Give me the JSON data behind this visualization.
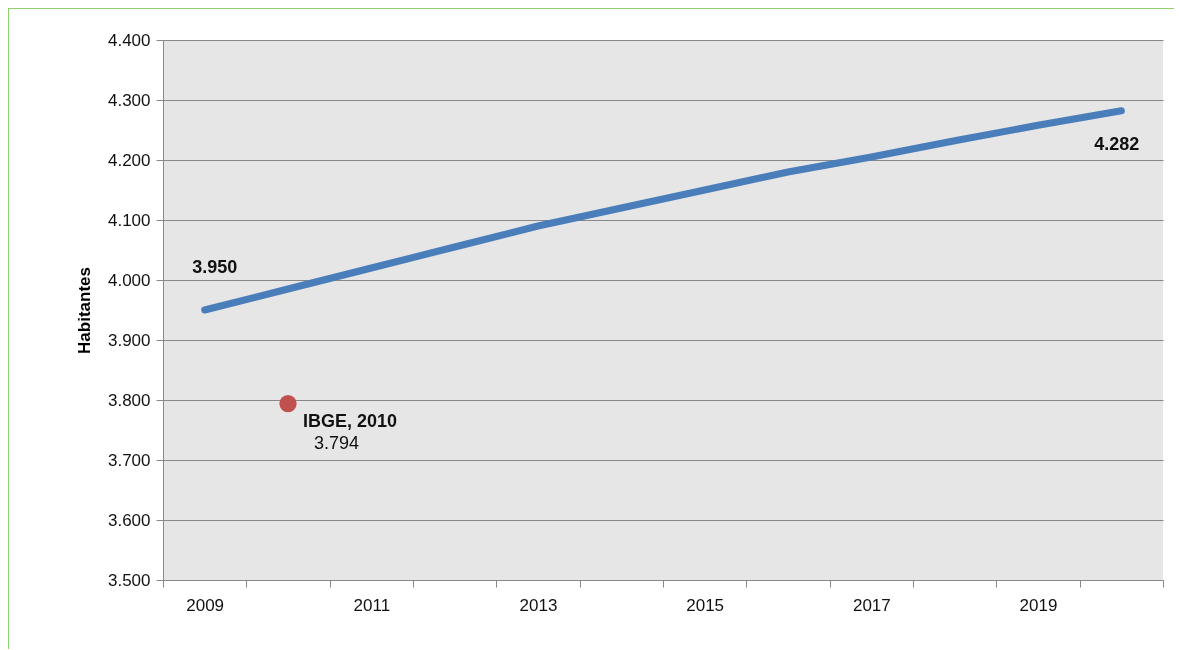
{
  "chart_data": {
    "type": "line",
    "ylabel": "Habitantes",
    "x": [
      2009,
      2010,
      2011,
      2012,
      2013,
      2014,
      2015,
      2016,
      2017,
      2018,
      2019,
      2020
    ],
    "series": [
      {
        "color": "#4a7ebb",
        "values": [
          3950,
          3985,
          4020,
          4055,
          4090,
          4120,
          4150,
          4180,
          4205,
          4232,
          4258,
          4282
        ],
        "value_labels": [
          "3.950",
          null,
          null,
          null,
          null,
          null,
          null,
          null,
          null,
          null,
          null,
          "4.282"
        ]
      },
      {
        "name": "IBGE, 2010",
        "type": "scatter",
        "marker": "circle",
        "color": "#c0504d",
        "x": [
          2010
        ],
        "values": [
          3794
        ],
        "value_labels": [
          "3.794"
        ]
      }
    ],
    "xlim": [
      2008.5,
      2020.5
    ],
    "xticks": [
      {
        "value": 2008.5,
        "label": null
      },
      2009,
      {
        "value": 2009.5,
        "label": null
      },
      {
        "value": 2010.5,
        "label": null
      },
      2011,
      {
        "value": 2011.5,
        "label": null
      },
      {
        "value": 2012.5,
        "label": null
      },
      2013,
      {
        "value": 2013.5,
        "label": null
      },
      {
        "value": 2014.5,
        "label": null
      },
      2015,
      {
        "value": 2015.5,
        "label": null
      },
      {
        "value": 2016.5,
        "label": null
      },
      2017,
      {
        "value": 2017.5,
        "label": null
      },
      {
        "value": 2018.5,
        "label": null
      },
      2019,
      {
        "value": 2019.5,
        "label": null
      },
      {
        "value": 2020.5,
        "label": null
      }
    ],
    "ylim": [
      3500,
      4400
    ],
    "yticks": [
      {
        "value": 3500,
        "label": "3.500"
      },
      {
        "value": 3600,
        "label": "3.600"
      },
      {
        "value": 3700,
        "label": "3.700"
      },
      {
        "value": 3800,
        "label": "3.800"
      },
      {
        "value": 3900,
        "label": "3.900"
      },
      {
        "value": 4000,
        "label": "4.000"
      },
      {
        "value": 4100,
        "label": "4.100"
      },
      {
        "value": 4200,
        "label": "4.200"
      },
      {
        "value": 4300,
        "label": "4.300"
      },
      {
        "value": 4400,
        "label": "4.400"
      }
    ],
    "grid": "y"
  }
}
